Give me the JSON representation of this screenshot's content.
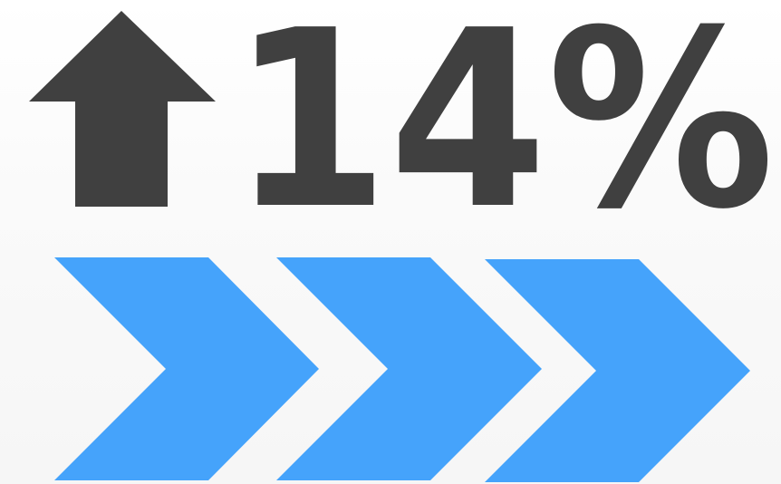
{
  "stat": {
    "value": "14%",
    "direction": "up",
    "arrow_icon": "arrow-up-icon",
    "text_color": "#404040"
  },
  "chevrons": {
    "count": 3,
    "icon": "chevron-right-icon",
    "color": "#45a3fb"
  }
}
